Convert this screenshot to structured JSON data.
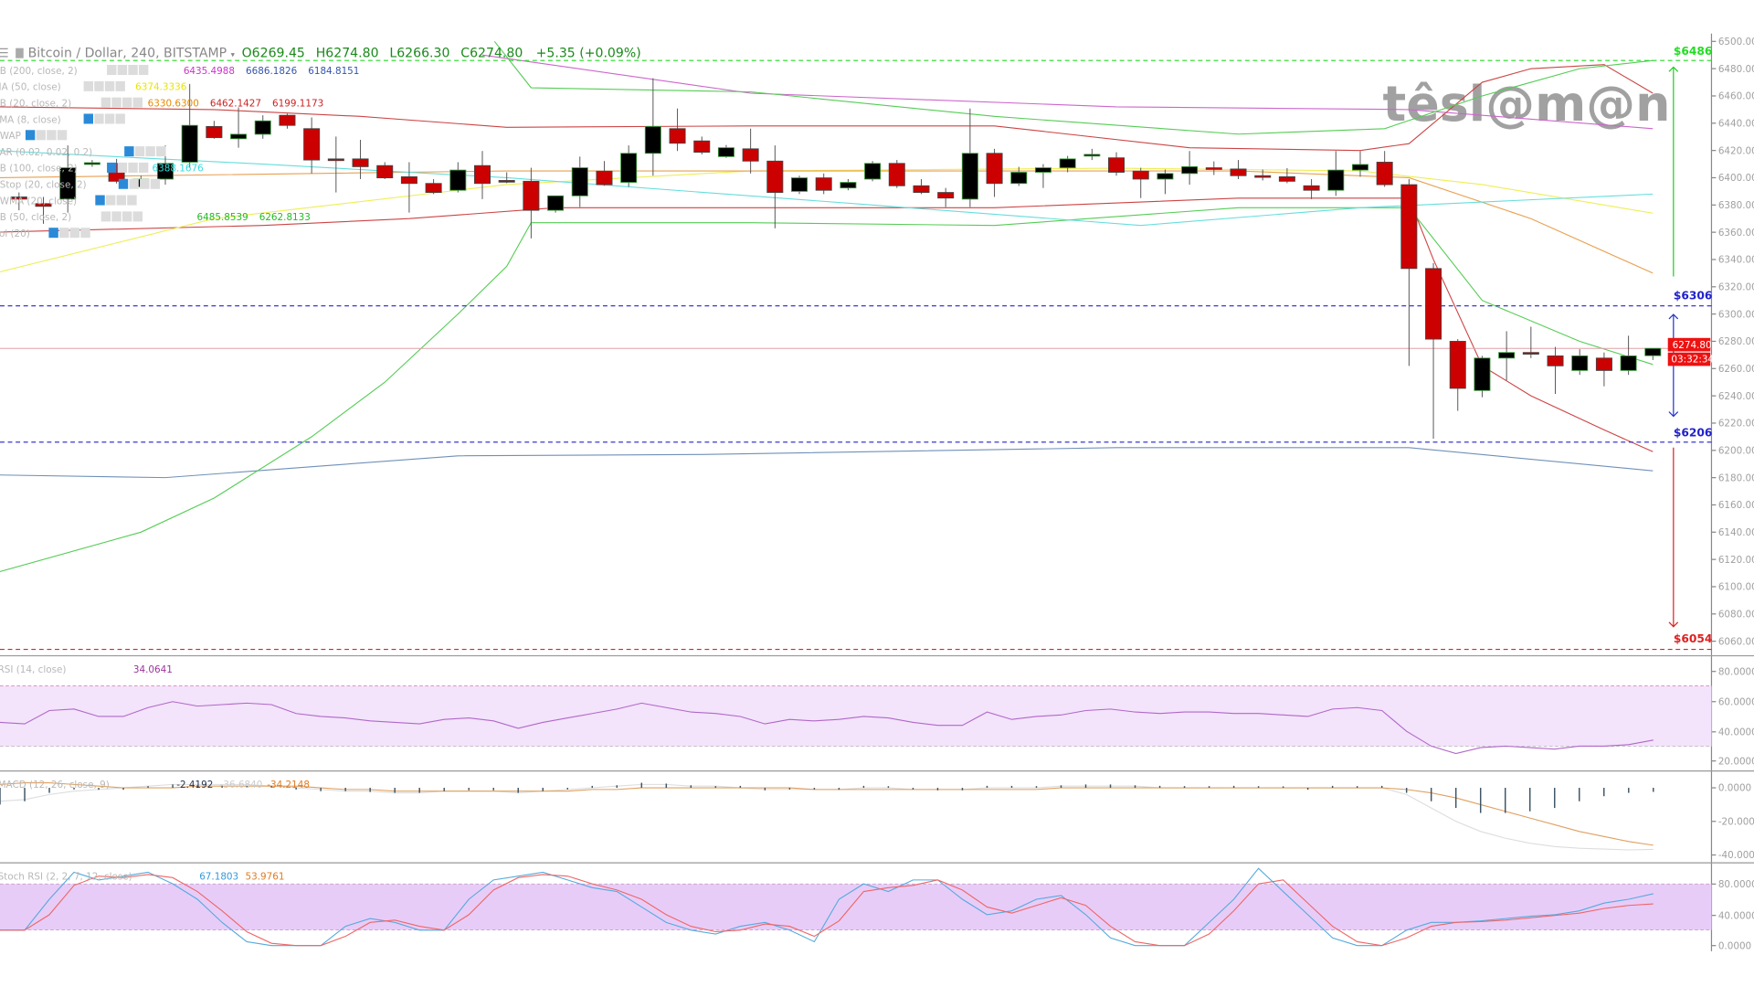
{
  "header": {
    "symbol": "Bitcoin / Dollar, 240, BITSTAMP",
    "open": "O6269.45",
    "high": "H6274.80",
    "low": "L6266.30",
    "close": "C6274.80",
    "change": "+5.35 (+0.09%)"
  },
  "watermark": "têsl@m@n",
  "indicators": [
    {
      "label": "BB (200, close, 2)",
      "values": [
        {
          "v": "6435.4988",
          "c": "#cc33cc"
        },
        {
          "v": "6686.1826",
          "c": "#3355aa"
        },
        {
          "v": "6184.8151",
          "c": "#3355aa"
        }
      ]
    },
    {
      "label": "MA (50, close)",
      "values": [
        {
          "v": "6374.3336",
          "c": "#e6e600"
        }
      ]
    },
    {
      "label": "BB (20, close, 2)",
      "values": [
        {
          "v": "6330.6300",
          "c": "#e68a00"
        },
        {
          "v": "6462.1427",
          "c": "#cc2222"
        },
        {
          "v": "6199.1173",
          "c": "#cc2222"
        }
      ]
    },
    {
      "label": "EMA (8, close)",
      "values": []
    },
    {
      "label": "VWAP",
      "values": []
    },
    {
      "label": "SAR (0.02, 0.02, 0.2)",
      "values": []
    },
    {
      "label": "BB (100, close, 2)",
      "values": [
        {
          "v": "6388.1676",
          "c": "#33dddd"
        }
      ]
    },
    {
      "label": "VStop (20, close, 2)",
      "values": []
    },
    {
      "label": "VWMA (20, close)",
      "values": []
    },
    {
      "label": "BB (50, close, 2)",
      "values": [
        {
          "v": "",
          "c": "#22bb22"
        },
        {
          "v": "6485.8539",
          "c": "#22bb22"
        },
        {
          "v": "6262.8133",
          "c": "#22bb22"
        }
      ]
    },
    {
      "label": "Vol (20)",
      "values": []
    }
  ],
  "levels": [
    {
      "label": "$6486",
      "price": 6486,
      "color": "#22dd22"
    },
    {
      "label": "$6306",
      "price": 6306,
      "color": "#2222cc"
    },
    {
      "label": "$6206",
      "price": 6206,
      "color": "#2222cc"
    },
    {
      "label": "$6054",
      "price": 6054,
      "color": "#dd2222"
    }
  ],
  "price_tag": {
    "price": "6274.80",
    "countdown": "03:32:34",
    "color": "#ee1111"
  },
  "panels": {
    "rsi": {
      "label": "RSI (14, close)",
      "value": "34.0641",
      "ticks": [
        "80.0000",
        "60.0000",
        "40.0000",
        "20.0000"
      ]
    },
    "macd": {
      "label": "MACD (12, 26, close, 9)",
      "hist": "-2.4192",
      "macd": "-36.6840",
      "signal": "-34.2148",
      "ticks": [
        "0.0000",
        "-20.0000",
        "-40.0000"
      ]
    },
    "stoch": {
      "label": "Stoch RSI (2, 2, 7, 12, close)",
      "k": "67.1803",
      "d": "53.9761",
      "ticks": [
        "80.0000",
        "40.0000",
        "0.0000"
      ]
    }
  },
  "chart_data": {
    "type": "candlestick",
    "title": "Bitcoin / Dollar, 240, BITSTAMP",
    "ylim": [
      6060,
      6500
    ],
    "y_ticks": [
      "6500.00",
      "6480.00",
      "6460.00",
      "6440.00",
      "6420.00",
      "6400.00",
      "6380.00",
      "6360.00",
      "6340.00",
      "6320.00",
      "6300.00",
      "6280.00",
      "6260.00",
      "6240.00",
      "6220.00",
      "6200.00",
      "6180.00",
      "6160.00",
      "6140.00",
      "6120.00",
      "6100.00",
      "6080.00",
      "6060.00"
    ],
    "ohlc": [
      [
        6385.9,
        6389.2,
        6376.1,
        6384.3
      ],
      [
        6381,
        6385.9,
        6366.2,
        6379
      ],
      [
        6384.3,
        6423.7,
        6374.4,
        6407.3
      ],
      [
        6410.5,
        6413,
        6408,
        6411
      ],
      [
        6410.5,
        6413.8,
        6395.8,
        6397.4
      ],
      [
        6393.3,
        6401.5,
        6392.5,
        6399.0
      ],
      [
        6399.0,
        6423.7,
        6394.9,
        6410.5
      ],
      [
        6411.4,
        6468.8,
        6407.3,
        6438.4
      ],
      [
        6437.6,
        6441.7,
        6428.6,
        6429.4
      ],
      [
        6428.6,
        6451.6,
        6422.0,
        6431.9
      ],
      [
        6431.9,
        6445.8,
        6428.6,
        6441.7
      ],
      [
        6445.8,
        6447,
        6436.0,
        6438.4
      ],
      [
        6436.0,
        6444.2,
        6403.1,
        6413.0
      ],
      [
        6413.8,
        6430.2,
        6389.2,
        6413.0
      ],
      [
        6413.8,
        6427.8,
        6399.0,
        6408.1
      ],
      [
        6408.9,
        6411.4,
        6399.0,
        6399.9
      ],
      [
        6400.7,
        6411.4,
        6374.4,
        6395.8
      ],
      [
        6395.8,
        6399.0,
        6388,
        6389.2
      ],
      [
        6390.8,
        6411.4,
        6389.2,
        6405.6
      ],
      [
        6408.9,
        6419.6,
        6384.3,
        6395.8
      ],
      [
        6398,
        6404,
        6396,
        6397.4
      ],
      [
        6397.4,
        6407.3,
        6355.5,
        6376.1
      ],
      [
        6376.1,
        6386.7,
        6374.4,
        6386.7
      ],
      [
        6386.7,
        6415.5,
        6378.5,
        6407.3
      ],
      [
        6404.8,
        6412.2,
        6394.1,
        6394.9
      ],
      [
        6396.6,
        6423.7,
        6393.3,
        6417.9
      ],
      [
        6417.9,
        6473.0,
        6401.5,
        6437.6
      ],
      [
        6436.0,
        6450.8,
        6419.6,
        6425.3
      ],
      [
        6427.0,
        6430.2,
        6417.1,
        6418.7
      ],
      [
        6415.5,
        6424,
        6414.6,
        6422.0
      ],
      [
        6421.2,
        6436.0,
        6403.1,
        6412.2
      ],
      [
        6412.2,
        6423.7,
        6362.9,
        6389.2
      ],
      [
        6390.0,
        6401.5,
        6388,
        6399.9
      ],
      [
        6399.9,
        6403.1,
        6388,
        6390.8
      ],
      [
        6392.5,
        6399.0,
        6390.8,
        6396.6
      ],
      [
        6399.0,
        6412.2,
        6397.4,
        6410.5
      ],
      [
        6410.5,
        6413,
        6392.5,
        6394.1
      ],
      [
        6394.1,
        6399.0,
        6388,
        6389.2
      ],
      [
        6389.2,
        6392.5,
        6378.5,
        6385.1
      ],
      [
        6384.3,
        6450.8,
        6378.5,
        6417.9
      ],
      [
        6417.9,
        6421.2,
        6385.9,
        6395.8
      ],
      [
        6395.8,
        6408,
        6394,
        6404.0
      ],
      [
        6404.0,
        6410,
        6392.5,
        6407.3
      ],
      [
        6407.3,
        6416,
        6404.0,
        6413.8
      ],
      [
        6416,
        6421.2,
        6413,
        6417.1
      ],
      [
        6414.6,
        6418.7,
        6401.5,
        6404.0
      ],
      [
        6404.8,
        6407.3,
        6385.1,
        6399.0
      ],
      [
        6399.0,
        6406,
        6388,
        6403.1
      ],
      [
        6403.1,
        6419.6,
        6394.9,
        6408.1
      ],
      [
        6407.3,
        6412,
        6402,
        6406.4
      ],
      [
        6406.4,
        6413,
        6399,
        6401.5
      ],
      [
        6401.5,
        6406,
        6398,
        6400.7
      ],
      [
        6400.7,
        6407,
        6396,
        6397.4
      ],
      [
        6394.1,
        6399.0,
        6384.3,
        6390.8
      ],
      [
        6390.8,
        6419.6,
        6386.7,
        6405.6
      ],
      [
        6405.6,
        6419.6,
        6400.7,
        6409.7
      ],
      [
        6411.4,
        6419.6,
        6393.3,
        6394.9
      ],
      [
        6394.9,
        6399.0,
        6262.0,
        6333.4
      ],
      [
        6333.4,
        6337.5,
        6208.6,
        6281.6
      ],
      [
        6280.0,
        6281.6,
        6229,
        6245.5
      ],
      [
        6243.9,
        6269.3,
        6239,
        6267.7
      ],
      [
        6267.7,
        6287.4,
        6251.3,
        6271.8
      ],
      [
        6271.8,
        6290.7,
        6267.7,
        6271.0
      ],
      [
        6269.3,
        6275.9,
        6241.4,
        6262.0
      ],
      [
        6258.6,
        6274.2,
        6255.4,
        6269.3
      ],
      [
        6267.7,
        6271.8,
        6247,
        6258.6
      ],
      [
        6258.6,
        6284.1,
        6255.4,
        6269.3
      ],
      [
        6269.45,
        6274.8,
        6266.3,
        6274.8
      ]
    ],
    "overlays": [
      {
        "name": "bb200-basis",
        "color": "#cc66cc",
        "points": [
          [
            19,
            6490
          ],
          [
            30,
            6462
          ],
          [
            45,
            6452
          ],
          [
            57,
            6450
          ],
          [
            67,
            6436
          ]
        ]
      },
      {
        "name": "bb200-lower",
        "color": "#7090b8",
        "points": [
          [
            -1,
            6182
          ],
          [
            6,
            6180
          ],
          [
            18,
            6196
          ],
          [
            28,
            6197
          ],
          [
            45,
            6202
          ],
          [
            57,
            6202
          ],
          [
            67,
            6185
          ]
        ]
      },
      {
        "name": "bb20-upper",
        "color": "#cc4444",
        "points": [
          [
            -1,
            6452
          ],
          [
            8,
            6450
          ],
          [
            14,
            6445
          ],
          [
            20,
            6437
          ],
          [
            30,
            6438
          ],
          [
            40,
            6438
          ],
          [
            48,
            6422
          ],
          [
            55,
            6420
          ],
          [
            57,
            6425
          ],
          [
            60,
            6470
          ],
          [
            62,
            6480
          ],
          [
            65,
            6483
          ],
          [
            67,
            6462
          ]
        ]
      },
      {
        "name": "bb20-lower",
        "color": "#cc4444",
        "points": [
          [
            -1,
            6360
          ],
          [
            10,
            6365
          ],
          [
            16,
            6370
          ],
          [
            22,
            6378
          ],
          [
            40,
            6378
          ],
          [
            50,
            6385
          ],
          [
            57,
            6385
          ],
          [
            58,
            6340
          ],
          [
            60,
            6262
          ],
          [
            62,
            6240
          ],
          [
            65,
            6215
          ],
          [
            67,
            6199
          ]
        ]
      },
      {
        "name": "bb50-upper",
        "color": "#55cc55",
        "points": [
          [
            19.5,
            6500
          ],
          [
            21,
            6466
          ],
          [
            30,
            6463
          ],
          [
            40,
            6445
          ],
          [
            50,
            6432
          ],
          [
            56,
            6436
          ],
          [
            60,
            6460
          ],
          [
            64,
            6480
          ],
          [
            67,
            6486
          ]
        ]
      },
      {
        "name": "bb50-lower",
        "color": "#55cc55",
        "points": [
          [
            -1,
            6110
          ],
          [
            5,
            6140
          ],
          [
            8,
            6165
          ],
          [
            12,
            6210
          ],
          [
            15,
            6250
          ],
          [
            18,
            6300
          ],
          [
            20,
            6335
          ],
          [
            21,
            6367
          ],
          [
            30,
            6367
          ],
          [
            40,
            6365
          ],
          [
            50,
            6378
          ],
          [
            57,
            6378
          ],
          [
            60,
            6310
          ],
          [
            64,
            6280
          ],
          [
            67,
            6263
          ]
        ]
      },
      {
        "name": "ma50",
        "color": "#eeee55",
        "points": [
          [
            -1,
            6330
          ],
          [
            8,
            6370
          ],
          [
            20,
            6395
          ],
          [
            30,
            6405
          ],
          [
            45,
            6407
          ],
          [
            55,
            6405
          ],
          [
            60,
            6395
          ],
          [
            67,
            6374
          ]
        ]
      },
      {
        "name": "bb100-basis",
        "color": "#e8a050",
        "points": [
          [
            -1,
            6400
          ],
          [
            20,
            6405
          ],
          [
            50,
            6405
          ],
          [
            57,
            6400
          ],
          [
            62,
            6370
          ],
          [
            67,
            6330
          ]
        ]
      },
      {
        "name": "bb100-mid",
        "color": "#66dddd",
        "points": [
          [
            -1,
            6420
          ],
          [
            10,
            6410
          ],
          [
            20,
            6400
          ],
          [
            35,
            6380
          ],
          [
            46,
            6365
          ],
          [
            55,
            6378
          ],
          [
            67,
            6388
          ]
        ]
      }
    ],
    "rsi": [
      46,
      45,
      54,
      55,
      50,
      50,
      56,
      60,
      57,
      58,
      59,
      58,
      52,
      50,
      49,
      47,
      46,
      45,
      48,
      49,
      47,
      42,
      46,
      49,
      52,
      55,
      59,
      56,
      53,
      52,
      50,
      45,
      48,
      47,
      48,
      50,
      49,
      46,
      44,
      44,
      53,
      48,
      50,
      51,
      54,
      55,
      53,
      52,
      53,
      53,
      52,
      52,
      51,
      50,
      55,
      56,
      54,
      40,
      30,
      25,
      29,
      30,
      29,
      28,
      30,
      30,
      31,
      34.06
    ],
    "macd_hist": [
      -10,
      -8,
      -3,
      -1,
      -0.5,
      -0.5,
      1,
      2,
      1.5,
      1,
      0.5,
      0.5,
      -1,
      -2,
      -2,
      -2.5,
      -3,
      -3,
      -2,
      -1.5,
      -1.5,
      -3,
      -2,
      -1,
      0.5,
      1.5,
      3,
      2.5,
      1.5,
      1,
      0.5,
      -1.5,
      -1,
      -1,
      -0.5,
      0.5,
      0.3,
      -1,
      -1.5,
      -1.5,
      0.5,
      0.5,
      1,
      1.5,
      2,
      2,
      1.5,
      0.5,
      1,
      1,
      0.5,
      0.3,
      0.2,
      -0.5,
      0.5,
      1,
      0.5,
      -3,
      -8,
      -12,
      -15,
      -15,
      -14,
      -12,
      -8,
      -5,
      -3,
      -2.42
    ],
    "macd_line": [
      -8,
      -7,
      -4,
      -2,
      -1,
      0,
      1,
      2,
      2,
      2,
      2,
      1,
      0,
      -1,
      -2,
      -2,
      -3,
      -3,
      -2,
      -2,
      -2,
      -3,
      -2,
      -1,
      0,
      1,
      2,
      2,
      1,
      1,
      0,
      -1,
      -1,
      -1,
      -1,
      0,
      0,
      -1,
      -1,
      -1,
      0,
      0,
      0,
      1,
      1,
      1,
      1,
      0,
      0,
      0,
      0,
      0,
      0,
      0,
      0,
      0,
      0,
      -4,
      -12,
      -20,
      -26,
      -30,
      -33,
      -35,
      -36,
      -36.5,
      -37,
      -36.68
    ],
    "macd_signal": [
      2,
      3,
      3,
      2,
      1,
      0,
      0,
      0,
      1,
      1,
      1,
      1,
      1,
      0,
      -1,
      -1,
      -2,
      -2,
      -2,
      -2,
      -2,
      -2,
      -2,
      -2,
      -1,
      -1,
      0,
      0,
      0,
      0,
      0,
      0,
      0,
      -1,
      -1,
      -1,
      -1,
      -1,
      -1,
      -1,
      -1,
      -1,
      -1,
      0,
      0,
      0,
      0,
      0,
      0,
      0,
      0,
      0,
      0,
      0,
      0,
      0,
      0,
      -1,
      -3,
      -6,
      -10,
      -14,
      -18,
      -22,
      -26,
      -29,
      -32,
      -34.21
    ],
    "stoch_k": [
      20,
      20,
      60,
      95,
      85,
      90,
      95,
      80,
      60,
      30,
      5,
      0,
      0,
      0,
      25,
      35,
      30,
      20,
      20,
      60,
      85,
      90,
      95,
      85,
      75,
      70,
      50,
      30,
      20,
      15,
      25,
      30,
      20,
      5,
      60,
      80,
      70,
      85,
      85,
      60,
      40,
      45,
      60,
      65,
      40,
      10,
      0,
      0,
      0,
      30,
      60,
      100,
      70,
      40,
      10,
      0,
      0,
      20,
      30,
      30,
      32,
      35,
      38,
      40,
      45,
      55,
      60,
      67.18
    ],
    "stoch_d": [
      20,
      20,
      40,
      78,
      90,
      88,
      92,
      88,
      70,
      45,
      18,
      3,
      0,
      0,
      12,
      30,
      33,
      25,
      20,
      40,
      72,
      88,
      92,
      90,
      80,
      72,
      60,
      40,
      25,
      18,
      20,
      28,
      25,
      12,
      32,
      70,
      75,
      78,
      85,
      72,
      50,
      42,
      52,
      62,
      52,
      25,
      5,
      0,
      0,
      15,
      45,
      80,
      85,
      55,
      25,
      5,
      0,
      10,
      25,
      30,
      31,
      33,
      36,
      39,
      42,
      48,
      52,
      53.98
    ]
  }
}
